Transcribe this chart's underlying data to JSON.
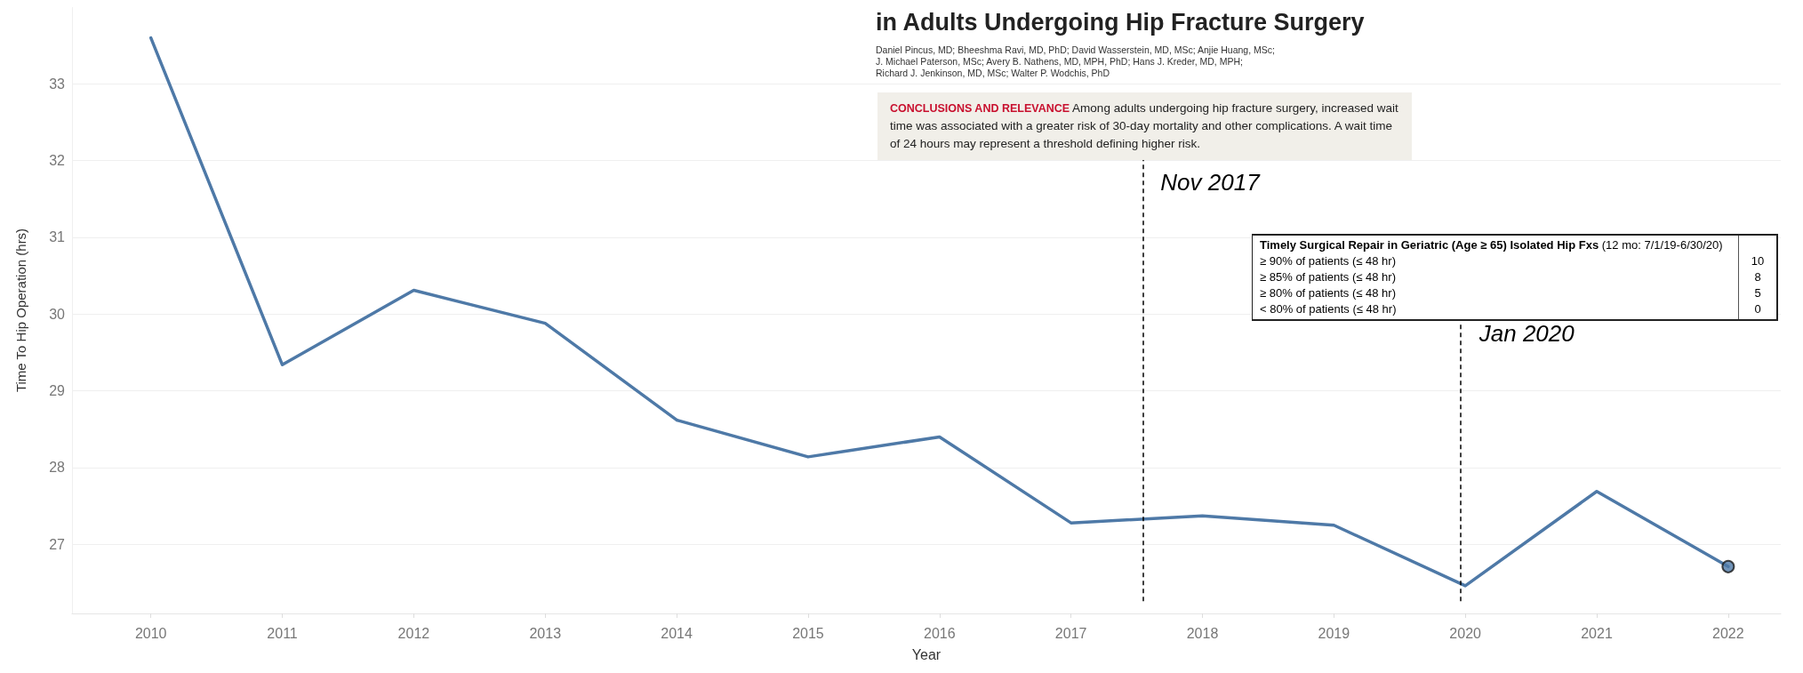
{
  "chart_data": {
    "type": "line",
    "xlabel": "Year",
    "ylabel": "Time To Hip Operation (hrs)",
    "x": [
      2010,
      2011,
      2012,
      2013,
      2014,
      2015,
      2016,
      2017,
      2018,
      2019,
      2020,
      2021,
      2022
    ],
    "series": [
      {
        "color": "#4e79a7",
        "values": [
          33.6,
          29.34,
          30.31,
          29.88,
          28.62,
          28.14,
          28.4,
          27.28,
          27.37,
          27.25,
          26.46,
          27.69,
          26.71
        ]
      },
      {
        "type": "scatter",
        "marker": "circle",
        "color": "#4e79a7",
        "x": [
          2022
        ],
        "values": [
          26.71
        ]
      }
    ],
    "xlim": [
      2009.4,
      2022.4
    ],
    "xticks": [
      2010,
      2011,
      2012,
      2013,
      2014,
      2015,
      2016,
      2017,
      2018,
      2019,
      2020,
      2021,
      2022
    ],
    "ylim": [
      26.1,
      34.0
    ],
    "yticks": [
      27,
      28,
      29,
      30,
      31,
      32,
      33
    ],
    "grid": "y",
    "marker": "none",
    "line_style": "solid",
    "ref_lines": [
      {
        "axis": "x",
        "value": 2017.55,
        "label": "Nov 2017",
        "line_style": "dashed",
        "color": "#000000"
      },
      {
        "axis": "x",
        "value": 2019.96,
        "label": "Jan 2020",
        "line_style": "dashed",
        "color": "#000000"
      }
    ],
    "annotations": [
      "in Adults Undergoing Hip Fracture Surgery",
      "Daniel Pincus, MD; Bheeshma Ravi, MD, PhD; David Wasserstein, MD, MSc; Anjie Huang, MSc;",
      "J. Michael Paterson, MSc; Avery B. Nathens, MD, MPH, PhD; Hans J. Kreder, MD, MPH;",
      "Richard J. Jenkinson, MD, MSc; Walter P. Wodchis, PhD",
      "CONCLUSIONS AND RELEVANCE",
      "Among adults undergoing hip fracture surgery, increased wait time was associated with a greater risk of 30-day mortality and other complications. A wait time of 24 hours may represent a threshold defining higher risk.",
      "Timely Surgical Repair in Geriatric (Age ≥ 65) Isolated Hip Fxs",
      "(12 mo: 7/1/19-6/30/20)",
      "≥ 90% of patients (≤ 48 hr)",
      "10",
      "≥ 85% of patients (≤ 48 hr)",
      "8",
      "≥ 80% of patients (≤ 48 hr)",
      "5",
      "< 80% of patients (≤ 48 hr)",
      "0"
    ]
  }
}
